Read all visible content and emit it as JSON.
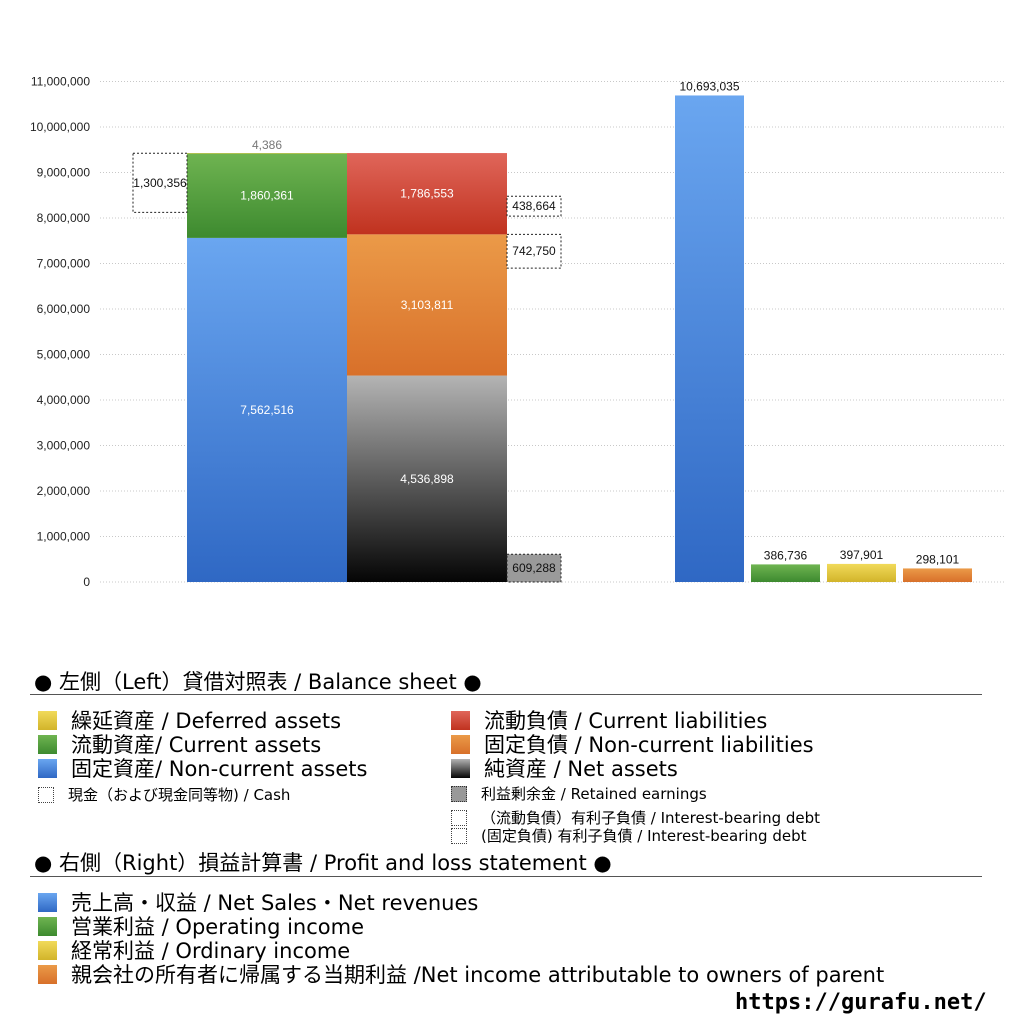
{
  "chart_data": [
    {
      "type": "bar",
      "subtype": "stacked",
      "title": "左側（Left）貸借対照表 / Balance sheet",
      "ylim": [
        0,
        11000000
      ],
      "yticks": [
        "0",
        "1,000,000",
        "2,000,000",
        "3,000,000",
        "4,000,000",
        "5,000,000",
        "6,000,000",
        "7,000,000",
        "8,000,000",
        "9,000,000",
        "10,000,000",
        "11,000,000"
      ],
      "grid": true,
      "stacks": [
        {
          "side": "assets",
          "segments": [
            {
              "name": "固定資産/ Non-current assets",
              "value": 7562516,
              "label": "7,562,516",
              "color": "#3f7fdc"
            },
            {
              "name": "流動資産/ Current assets",
              "value": 1860361,
              "label": "1,860,361",
              "color": "#4e9e3a"
            },
            {
              "name": "繰延資産 /    Deferred assets",
              "value": 4386,
              "label": "4,386",
              "color": "#e0c23a"
            }
          ]
        },
        {
          "side": "liabilities",
          "segments": [
            {
              "name": "純資産 / Net assets",
              "value": 4536898,
              "label": "4,536,898",
              "color": "#555555"
            },
            {
              "name": "固定負債 / Non-current liabilities",
              "value": 3103811,
              "label": "3,103,811",
              "color": "#e07f2c"
            },
            {
              "name": "流動負債 /  Current liabilities",
              "value": 1786553,
              "label": "1,786,553",
              "color": "#cc3b2b"
            }
          ]
        }
      ],
      "annotations": [
        {
          "name": "現金（および現金同等物) / Cash",
          "value": 1300356,
          "label": "1,300,356"
        },
        {
          "name": "利益剰余金 / Retained earnings",
          "value": 609288,
          "label": "609,288"
        },
        {
          "name": "（流動負債）有利子負債 / Interest-bearing debt",
          "value": 438664,
          "label": "438,664"
        },
        {
          "name": "(固定負債) 有利子負債 / Interest-bearing debt",
          "value": 742750,
          "label": "742,750"
        }
      ]
    },
    {
      "type": "bar",
      "title": "右側（Right）損益計算書 / Profit and loss statement",
      "ylim": [
        0,
        11000000
      ],
      "categories": [
        "売上高・収益 / Net Sales・Net revenues",
        "営業利益 / Operating income",
        "経常利益 / Ordinary income",
        "親会社の所有者に帰属する当期利益 /Net income attributable to owners of parent"
      ],
      "values": [
        10693035,
        386736,
        397901,
        298101
      ],
      "labels": [
        "10,693,035",
        "386,736",
        "397,901",
        "298,101"
      ],
      "colors": [
        "#3f7fdc",
        "#4e9e3a",
        "#e0c23a",
        "#e07f2c"
      ]
    }
  ],
  "legend": {
    "bs_title": "● 左側（Left）貸借対照表 / Balance sheet ●",
    "bs_items": [
      {
        "label": "繰延資産 /    Deferred assets",
        "color": "#e0c23a"
      },
      {
        "label": "流動資産/ Current assets",
        "color": "#4e9e3a"
      },
      {
        "label": "固定資産/ Non-current assets",
        "color": "#3f7fdc"
      },
      {
        "label": "流動負債 /  Current liabilities",
        "color": "#cc3b2b"
      },
      {
        "label": "固定負債 / Non-current liabilities",
        "color": "#e07f2c"
      },
      {
        "label": "純資産 / Net assets",
        "color": "#222222"
      }
    ],
    "cash_label": "現金（および現金同等物) / Cash",
    "retained_label": "利益剰余金 / Retained earnings",
    "debt_current_label": "（流動負債）有利子負債 / Interest-bearing debt",
    "debt_noncurrent_label": "(固定負債) 有利子負債 / Interest-bearing debt",
    "pl_title": "● 右側（Right）損益計算書 / Profit and loss statement ●",
    "pl_items": [
      {
        "label": "売上高・収益 / Net Sales・Net revenues",
        "color": "#3f7fdc"
      },
      {
        "label": "営業利益 / Operating income",
        "color": "#4e9e3a"
      },
      {
        "label": "経常利益 / Ordinary income",
        "color": "#e0c23a"
      },
      {
        "label": "親会社の所有者に帰属する当期利益 /Net income attributable to owners of parent",
        "color": "#e07f2c"
      }
    ]
  },
  "footer": {
    "url": "https://gurafu.net/"
  }
}
